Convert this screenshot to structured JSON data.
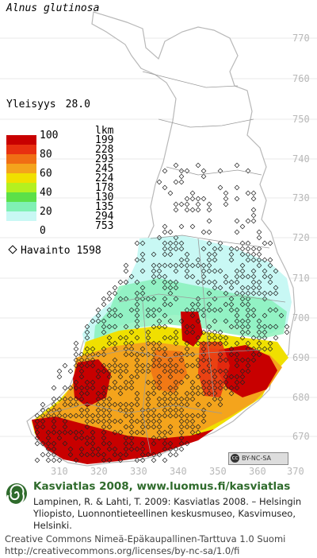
{
  "species": "Alnus glutinosa",
  "frequency": {
    "label": "Yleisyys",
    "value": "28.0"
  },
  "legend": {
    "unit": "lkm",
    "bins": [
      {
        "color": "#c80000",
        "count": "199"
      },
      {
        "color": "#e83010",
        "count": "228"
      },
      {
        "color": "#f06e14",
        "count": "293"
      },
      {
        "color": "#f4a41c",
        "count": "245"
      },
      {
        "color": "#f0e000",
        "count": "224"
      },
      {
        "color": "#b4f020",
        "count": "178"
      },
      {
        "color": "#5ce048",
        "count": "130"
      },
      {
        "color": "#80f0b4",
        "count": "135"
      },
      {
        "color": "#c8f8f4",
        "count": "294"
      },
      {
        "color": "#ffffff",
        "count": "753"
      }
    ],
    "scale_labels": [
      "100",
      "80",
      "60",
      "40",
      "20",
      "0"
    ]
  },
  "observations": {
    "label": "Havainto",
    "count": "1598"
  },
  "y_ticks": [
    "770",
    "760",
    "750",
    "740",
    "730",
    "720",
    "710",
    "700",
    "690",
    "680",
    "670"
  ],
  "x_ticks": [
    "310",
    "320",
    "330",
    "340",
    "350",
    "360",
    "370"
  ],
  "license_badge": "BY-NC-SA",
  "footer": {
    "heading": "Kasviatlas 2008, www.luomus.fi/kasviatlas",
    "citation": "Lampinen, R. & Lahti, T. 2009: Kasviatlas 2008. – Helsingin Yliopisto, Luonnontieteellinen keskusmuseo, Kasvimuseo, Helsinki.",
    "license": "Creative Commons Nimeä-Epäkaupallinen-Tarttuva 1.0 Suomi http://creativecommons.org/licenses/by-nc-sa/1.0/fi"
  }
}
